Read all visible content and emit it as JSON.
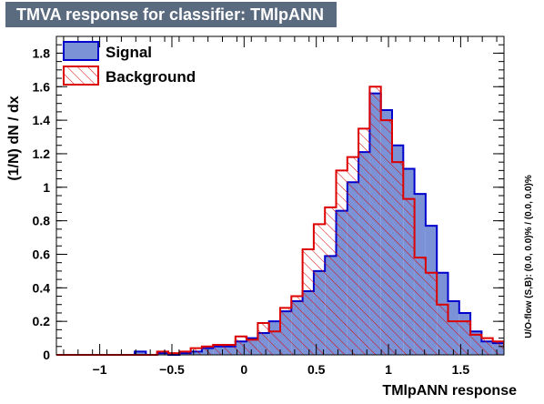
{
  "chart_data": {
    "type": "histogram",
    "title": "TMVA response for classifier: TMlpANN",
    "xlabel": "TMlpANN response",
    "ylabel": "(1/N) dN / dx",
    "side_note": "U/O-flow (S,B): (0.0, 0.0)% / (0.0, 0.0)%",
    "xlim": [
      -1.3,
      1.8
    ],
    "ylim": [
      0,
      1.9
    ],
    "x_ticks": [
      -1,
      -0.5,
      0,
      0.5,
      1,
      1.5
    ],
    "x_tick_labels": [
      "−1",
      "−0.5",
      "0",
      "0.5",
      "1",
      "1.5"
    ],
    "y_ticks": [
      0,
      0.2,
      0.4,
      0.6,
      0.8,
      1,
      1.2,
      1.4,
      1.6,
      1.8
    ],
    "y_tick_labels": [
      "0",
      "0.2",
      "0.4",
      "0.6",
      "0.8",
      "1",
      "1.2",
      "1.4",
      "1.6",
      "1.8"
    ],
    "bin_edges_start": -1.3,
    "bin_width": 0.0775,
    "legend_placement": "top-left",
    "series": [
      {
        "name": "Signal",
        "fill_color": "#7b93d6",
        "line_color": "#0000cc",
        "values": [
          0,
          0,
          0,
          0,
          0,
          0,
          0,
          0.02,
          0,
          0.01,
          0,
          0.01,
          0.02,
          0.04,
          0.05,
          0.05,
          0.08,
          0.1,
          0.13,
          0.2,
          0.26,
          0.32,
          0.38,
          0.5,
          0.59,
          0.86,
          1.03,
          1.21,
          1.56,
          1.46,
          1.25,
          1.11,
          0.96,
          0.77,
          0.49,
          0.32,
          0.25,
          0.14,
          0.08,
          0.07,
          0.05,
          0.04,
          0.02,
          0,
          0,
          0
        ]
      },
      {
        "name": "Background",
        "fill_color": "none",
        "line_color": "#dd0000",
        "values": [
          0,
          0,
          0,
          0,
          0,
          0,
          0,
          0,
          0,
          0.02,
          0.01,
          0.02,
          0.04,
          0.05,
          0.06,
          0.06,
          0.11,
          0.09,
          0.19,
          0.14,
          0.28,
          0.35,
          0.63,
          0.78,
          0.88,
          1.1,
          1.18,
          1.35,
          1.6,
          1.4,
          1.15,
          0.93,
          0.58,
          0.49,
          0.3,
          0.2,
          0.2,
          0.12,
          0.1,
          0.08,
          0.05,
          0.02,
          0.01,
          0,
          0,
          0
        ]
      }
    ]
  }
}
